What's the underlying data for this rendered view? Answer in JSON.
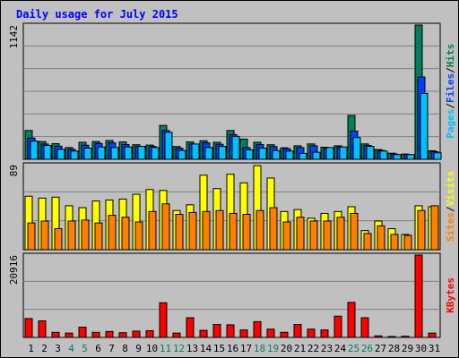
{
  "title": "Daily usage for July 2015",
  "colors": {
    "background": "#c0c0c0",
    "hits": "#00805c",
    "files": "#0040ff",
    "pages": "#00c0ff",
    "visits": "#ffff00",
    "sites": "#ff8000",
    "kbytes": "#ff0000",
    "weekend_label": "#00805c",
    "grid": "#808080"
  },
  "chart_data": [
    {
      "type": "bar",
      "name": "hits-files-pages",
      "ymax_label": "1142",
      "ylim": [
        0,
        1142
      ],
      "right_labels": [
        {
          "text": "Pages",
          "color": "#00c0ff"
        },
        {
          "text": "/",
          "color": "#000000"
        },
        {
          "text": "Files",
          "color": "#0040ff"
        },
        {
          "text": "/",
          "color": "#000000"
        },
        {
          "text": "Hits",
          "color": "#00805c"
        }
      ],
      "categories": [
        "1",
        "2",
        "3",
        "4",
        "5",
        "6",
        "7",
        "8",
        "9",
        "10",
        "11",
        "12",
        "13",
        "14",
        "15",
        "16",
        "17",
        "18",
        "19",
        "20",
        "21",
        "22",
        "23",
        "24",
        "25",
        "26",
        "27",
        "28",
        "29",
        "30",
        "31"
      ],
      "series": [
        {
          "name": "Hits",
          "color": "#00805c",
          "values": [
            245,
            151,
            133,
            100,
            145,
            151,
            160,
            148,
            124,
            121,
            288,
            109,
            148,
            158,
            145,
            245,
            172,
            145,
            124,
            98,
            115,
            131,
            103,
            115,
            373,
            131,
            83,
            52,
            45,
            1142,
            73
          ]
        },
        {
          "name": "Files",
          "color": "#0040ff",
          "values": [
            180,
            130,
            112,
            85,
            120,
            135,
            140,
            125,
            110,
            110,
            245,
            95,
            130,
            140,
            128,
            210,
            100,
            125,
            108,
            90,
            100,
            115,
            92,
            105,
            240,
            118,
            75,
            45,
            40,
            700,
            65
          ]
        },
        {
          "name": "Pages",
          "color": "#00c0ff",
          "values": [
            155,
            118,
            85,
            70,
            95,
            105,
            100,
            105,
            110,
            100,
            230,
            75,
            130,
            100,
            110,
            195,
            80,
            95,
            75,
            70,
            50,
            60,
            100,
            105,
            185,
            110,
            70,
            40,
            40,
            560,
            55
          ]
        }
      ]
    },
    {
      "type": "bar",
      "name": "visits-sites",
      "ymax_label": "89",
      "ylim": [
        0,
        89
      ],
      "right_labels": [
        {
          "text": "Sites",
          "color": "#ff8000"
        },
        {
          "text": "/",
          "color": "#000000"
        },
        {
          "text": "Visits",
          "color": "#ffff00"
        }
      ],
      "categories": [
        "1",
        "2",
        "3",
        "4",
        "5",
        "6",
        "7",
        "8",
        "9",
        "10",
        "11",
        "12",
        "13",
        "14",
        "15",
        "16",
        "17",
        "18",
        "19",
        "20",
        "21",
        "22",
        "23",
        "24",
        "25",
        "26",
        "27",
        "28",
        "29",
        "30",
        "31"
      ],
      "series": [
        {
          "name": "Visits",
          "color": "#ffff00",
          "values": [
            56,
            54,
            55,
            46,
            44,
            51,
            52,
            53,
            58,
            63,
            62,
            41,
            47,
            78,
            64,
            79,
            70,
            88,
            75,
            40,
            42,
            33,
            38,
            40,
            45,
            20,
            30,
            22,
            16,
            46,
            45
          ]
        },
        {
          "name": "Sites",
          "color": "#ff8000",
          "values": [
            28,
            30,
            22,
            30,
            31,
            28,
            36,
            34,
            29,
            40,
            48,
            37,
            39,
            40,
            41,
            38,
            37,
            41,
            44,
            29,
            34,
            30,
            30,
            34,
            38,
            17,
            25,
            16,
            15,
            41,
            46
          ]
        }
      ]
    },
    {
      "type": "bar",
      "name": "kbytes",
      "ymax_label": "20916",
      "ylim": [
        0,
        20916
      ],
      "right_labels": [
        {
          "text": "KBytes",
          "color": "#ff0000"
        }
      ],
      "categories": [
        "1",
        "2",
        "3",
        "4",
        "5",
        "6",
        "7",
        "8",
        "9",
        "10",
        "11",
        "12",
        "13",
        "14",
        "15",
        "16",
        "17",
        "18",
        "19",
        "20",
        "21",
        "22",
        "23",
        "24",
        "25",
        "26",
        "27",
        "28",
        "29",
        "30",
        "31"
      ],
      "series": [
        {
          "name": "KBytes",
          "color": "#ff0000",
          "values": [
            4800,
            4200,
            1300,
            1100,
            2600,
            1300,
            1500,
            1200,
            1600,
            1700,
            8800,
            1100,
            5000,
            1800,
            3300,
            3200,
            1900,
            4000,
            2100,
            1300,
            3300,
            2100,
            1900,
            5400,
            8900,
            5000,
            400,
            200,
            300,
            20916,
            1100
          ]
        }
      ]
    }
  ],
  "x_labels": [
    {
      "day": "1",
      "weekend": false
    },
    {
      "day": "2",
      "weekend": false
    },
    {
      "day": "3",
      "weekend": false
    },
    {
      "day": "4",
      "weekend": true
    },
    {
      "day": "5",
      "weekend": true
    },
    {
      "day": "6",
      "weekend": false
    },
    {
      "day": "7",
      "weekend": false
    },
    {
      "day": "8",
      "weekend": false
    },
    {
      "day": "9",
      "weekend": false
    },
    {
      "day": "10",
      "weekend": false
    },
    {
      "day": "11",
      "weekend": true
    },
    {
      "day": "12",
      "weekend": true
    },
    {
      "day": "13",
      "weekend": false
    },
    {
      "day": "14",
      "weekend": false
    },
    {
      "day": "15",
      "weekend": false
    },
    {
      "day": "16",
      "weekend": false
    },
    {
      "day": "17",
      "weekend": false
    },
    {
      "day": "18",
      "weekend": true
    },
    {
      "day": "19",
      "weekend": true
    },
    {
      "day": "20",
      "weekend": false
    },
    {
      "day": "21",
      "weekend": false
    },
    {
      "day": "22",
      "weekend": false
    },
    {
      "day": "23",
      "weekend": false
    },
    {
      "day": "24",
      "weekend": false
    },
    {
      "day": "25",
      "weekend": true
    },
    {
      "day": "26",
      "weekend": true
    },
    {
      "day": "27",
      "weekend": false
    },
    {
      "day": "28",
      "weekend": false
    },
    {
      "day": "29",
      "weekend": false
    },
    {
      "day": "30",
      "weekend": false
    },
    {
      "day": "31",
      "weekend": false
    }
  ]
}
